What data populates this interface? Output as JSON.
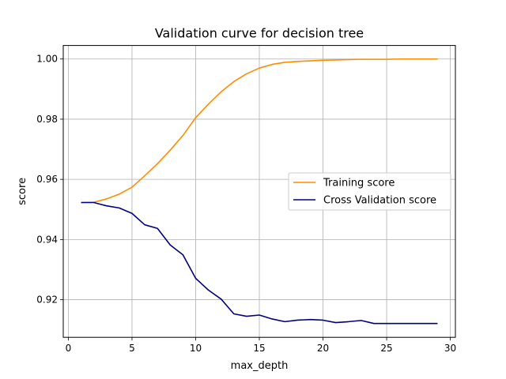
{
  "chart_data": {
    "type": "line",
    "title": "Validation curve for decision tree",
    "xlabel": "max_depth",
    "ylabel": "score",
    "xlim": [
      -0.4,
      30.4
    ],
    "ylim": [
      0.9075,
      1.0045
    ],
    "xticks": [
      0,
      5,
      10,
      15,
      20,
      25,
      30
    ],
    "xtick_labels": [
      "0",
      "5",
      "10",
      "15",
      "20",
      "25",
      "30"
    ],
    "yticks": [
      0.92,
      0.94,
      0.96,
      0.98,
      1.0
    ],
    "ytick_labels": [
      "0.92",
      "0.94",
      "0.96",
      "0.98",
      "1.00"
    ],
    "grid": true,
    "legend_position": "center-right",
    "x": [
      1,
      2,
      3,
      4,
      5,
      6,
      7,
      8,
      9,
      10,
      11,
      12,
      13,
      14,
      15,
      16,
      17,
      18,
      19,
      20,
      21,
      22,
      23,
      24,
      25,
      26,
      27,
      28,
      29
    ],
    "series": [
      {
        "name": "Training score",
        "color": "#ff8c00",
        "values": [
          0.9523,
          0.9524,
          0.9535,
          0.9551,
          0.9574,
          0.9612,
          0.9652,
          0.9697,
          0.9746,
          0.9805,
          0.985,
          0.9891,
          0.9925,
          0.9951,
          0.997,
          0.9982,
          0.9989,
          0.9992,
          0.9994,
          0.9996,
          0.9997,
          0.9998,
          0.9999,
          0.9999,
          0.9999,
          1.0,
          1.0,
          1.0,
          1.0
        ]
      },
      {
        "name": "Cross Validation score",
        "color": "#000080",
        "values": [
          0.9523,
          0.9523,
          0.9512,
          0.9505,
          0.9487,
          0.9449,
          0.9437,
          0.9382,
          0.9349,
          0.9271,
          0.9232,
          0.9202,
          0.9153,
          0.9145,
          0.9149,
          0.9136,
          0.9127,
          0.9132,
          0.9134,
          0.9132,
          0.9124,
          0.9127,
          0.9131,
          0.9121,
          0.9121,
          0.9121,
          0.9121,
          0.9121,
          0.9121
        ]
      }
    ]
  }
}
